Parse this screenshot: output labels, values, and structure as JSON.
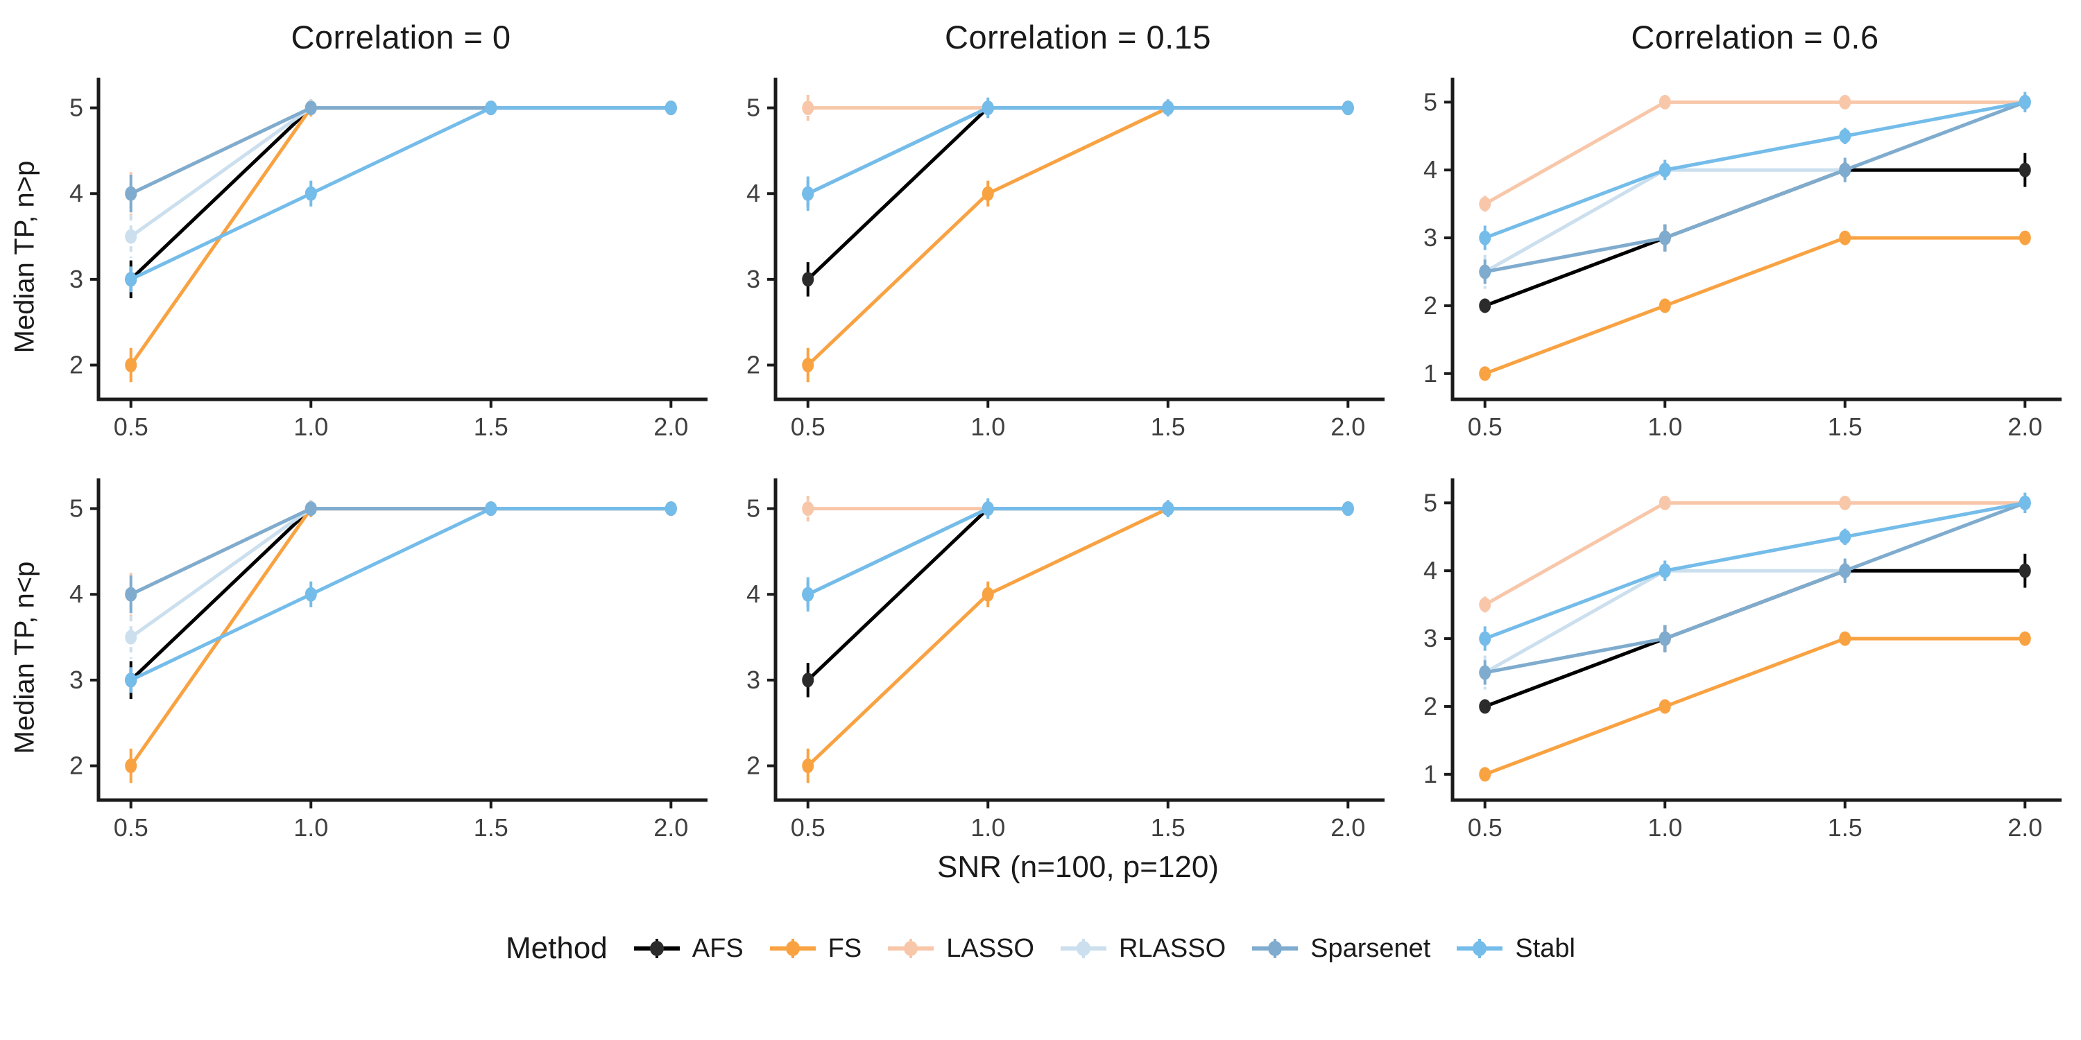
{
  "figure": {
    "col_titles": [
      "Correlation = 0",
      "Correlation = 0.15",
      "Correlation = 0.6"
    ],
    "row_ylabels": [
      "Median TP, n>p",
      "Median TP, n<p"
    ],
    "xlabel": "SNR (n=100, p=120)",
    "legend_title": "Method",
    "background": "#ffffff",
    "axis_color": "#1b1b1b",
    "tick_label_color": "#404040"
  },
  "chart_data": {
    "type": "line",
    "x": [
      0.5,
      1.0,
      1.5,
      2.0
    ],
    "x_tick_labels": [
      "0.5",
      "1.0",
      "1.5",
      "2.0"
    ],
    "xlim": [
      0.41,
      2.09
    ],
    "legend_position": "bottom",
    "grid": "off",
    "methods": [
      {
        "name": "AFS",
        "color": "#000000",
        "point": "#2b2b2b",
        "err_dash": false
      },
      {
        "name": "FS",
        "color": "#F9A242",
        "point": "#F9A242",
        "err_dash": false
      },
      {
        "name": "LASSO",
        "color": "#F8C7A9",
        "point": "#F8C7A9",
        "err_dash": true
      },
      {
        "name": "RLASSO",
        "color": "#CBDFEE",
        "point": "#CBDFEE",
        "err_dash": true
      },
      {
        "name": "Sparsenet",
        "color": "#7FACCE",
        "point": "#7FACCE",
        "err_dash": false
      },
      {
        "name": "Stabl",
        "color": "#74BCE9",
        "point": "#74BCE9",
        "err_dash": false
      }
    ],
    "panels": [
      {
        "facet_col": "Correlation = 0",
        "facet_row": "Median TP, n>p",
        "yticks": [
          2,
          3,
          4,
          5
        ],
        "ylim": [
          1.6,
          5.32
        ],
        "series": {
          "AFS": {
            "y": [
              3,
              5,
              5,
              5
            ],
            "err": [
              0.22,
              0.08,
              0,
              0
            ]
          },
          "FS": {
            "y": [
              2,
              5,
              5,
              5
            ],
            "err": [
              0.2,
              0.1,
              0,
              0
            ]
          },
          "LASSO": {
            "y": [
              4,
              5,
              5,
              5
            ],
            "err": [
              0.25,
              0.08,
              0,
              0
            ]
          },
          "RLASSO": {
            "y": [
              3.5,
              5,
              5,
              5
            ],
            "err": [
              0.25,
              0.1,
              0,
              0
            ]
          },
          "Sparsenet": {
            "y": [
              4,
              5,
              5,
              5
            ],
            "err": [
              0.22,
              0.08,
              0,
              0
            ]
          },
          "Stabl": {
            "y": [
              3,
              4,
              5,
              5
            ],
            "err": [
              0.15,
              0.15,
              0.05,
              0.05
            ]
          }
        }
      },
      {
        "facet_col": "Correlation = 0.15",
        "facet_row": "Median TP, n>p",
        "yticks": [
          2,
          3,
          4,
          5
        ],
        "ylim": [
          1.6,
          5.32
        ],
        "series": {
          "AFS": {
            "y": [
              3,
              5,
              5,
              5
            ],
            "err": [
              0.2,
              0.05,
              0,
              0
            ]
          },
          "FS": {
            "y": [
              2,
              4,
              5,
              5
            ],
            "err": [
              0.2,
              0.15,
              0.08,
              0.05
            ]
          },
          "LASSO": {
            "y": [
              5,
              5,
              5,
              5
            ],
            "err": [
              0.15,
              0.05,
              0.05,
              0.08
            ]
          },
          "RLASSO": {
            "y": [
              4,
              5,
              5,
              5
            ],
            "err": [
              0.15,
              0.05,
              0,
              0
            ]
          },
          "Sparsenet": {
            "y": [
              4,
              5,
              5,
              5
            ],
            "err": [
              0.15,
              0.05,
              0,
              0
            ]
          },
          "Stabl": {
            "y": [
              4,
              5,
              5,
              5
            ],
            "err": [
              0.2,
              0.12,
              0.1,
              0.05
            ]
          }
        }
      },
      {
        "facet_col": "Correlation = 0.6",
        "facet_row": "Median TP, n>p",
        "yticks": [
          1,
          2,
          3,
          4,
          5
        ],
        "ylim": [
          0.62,
          5.32
        ],
        "series": {
          "AFS": {
            "y": [
              2,
              3,
              4,
              4
            ],
            "err": [
              0.1,
              0.2,
              0.12,
              0.25
            ]
          },
          "FS": {
            "y": [
              1,
              2,
              3,
              3
            ],
            "err": [
              0.08,
              0.1,
              0.1,
              0.1
            ]
          },
          "LASSO": {
            "y": [
              3.5,
              5,
              5,
              5
            ],
            "err": [
              0.12,
              0.08,
              0.08,
              0.08
            ]
          },
          "RLASSO": {
            "y": [
              2.5,
              4,
              4,
              5
            ],
            "err": [
              0.25,
              0.12,
              0.1,
              0.1
            ]
          },
          "Sparsenet": {
            "y": [
              2.5,
              3,
              4,
              5
            ],
            "err": [
              0.18,
              0.2,
              0.18,
              0.1
            ]
          },
          "Stabl": {
            "y": [
              3,
              4,
              4.5,
              5
            ],
            "err": [
              0.18,
              0.15,
              0.12,
              0.15
            ]
          }
        }
      },
      {
        "facet_col": "Correlation = 0",
        "facet_row": "Median TP, n<p",
        "yticks": [
          2,
          3,
          4,
          5
        ],
        "ylim": [
          1.6,
          5.32
        ],
        "series": {
          "AFS": {
            "y": [
              3,
              5,
              5,
              5
            ],
            "err": [
              0.22,
              0.08,
              0,
              0
            ]
          },
          "FS": {
            "y": [
              2,
              5,
              5,
              5
            ],
            "err": [
              0.2,
              0.1,
              0,
              0
            ]
          },
          "LASSO": {
            "y": [
              4,
              5,
              5,
              5
            ],
            "err": [
              0.25,
              0.08,
              0,
              0
            ]
          },
          "RLASSO": {
            "y": [
              3.5,
              5,
              5,
              5
            ],
            "err": [
              0.25,
              0.1,
              0,
              0
            ]
          },
          "Sparsenet": {
            "y": [
              4,
              5,
              5,
              5
            ],
            "err": [
              0.22,
              0.08,
              0,
              0
            ]
          },
          "Stabl": {
            "y": [
              3,
              4,
              5,
              5
            ],
            "err": [
              0.15,
              0.15,
              0.05,
              0.05
            ]
          }
        }
      },
      {
        "facet_col": "Correlation = 0.15",
        "facet_row": "Median TP, n<p",
        "yticks": [
          2,
          3,
          4,
          5
        ],
        "ylim": [
          1.6,
          5.32
        ],
        "series": {
          "AFS": {
            "y": [
              3,
              5,
              5,
              5
            ],
            "err": [
              0.2,
              0.05,
              0,
              0
            ]
          },
          "FS": {
            "y": [
              2,
              4,
              5,
              5
            ],
            "err": [
              0.2,
              0.15,
              0.08,
              0.05
            ]
          },
          "LASSO": {
            "y": [
              5,
              5,
              5,
              5
            ],
            "err": [
              0.15,
              0.05,
              0.05,
              0.08
            ]
          },
          "RLASSO": {
            "y": [
              4,
              5,
              5,
              5
            ],
            "err": [
              0.15,
              0.05,
              0,
              0
            ]
          },
          "Sparsenet": {
            "y": [
              4,
              5,
              5,
              5
            ],
            "err": [
              0.15,
              0.05,
              0,
              0
            ]
          },
          "Stabl": {
            "y": [
              4,
              5,
              5,
              5
            ],
            "err": [
              0.2,
              0.12,
              0.1,
              0.05
            ]
          }
        }
      },
      {
        "facet_col": "Correlation = 0.6",
        "facet_row": "Median TP, n<p",
        "yticks": [
          1,
          2,
          3,
          4,
          5
        ],
        "ylim": [
          0.62,
          5.32
        ],
        "series": {
          "AFS": {
            "y": [
              2,
              3,
              4,
              4
            ],
            "err": [
              0.1,
              0.2,
              0.12,
              0.25
            ]
          },
          "FS": {
            "y": [
              1,
              2,
              3,
              3
            ],
            "err": [
              0.08,
              0.1,
              0.1,
              0.1
            ]
          },
          "LASSO": {
            "y": [
              3.5,
              5,
              5,
              5
            ],
            "err": [
              0.12,
              0.08,
              0.08,
              0.08
            ]
          },
          "RLASSO": {
            "y": [
              2.5,
              4,
              4,
              5
            ],
            "err": [
              0.25,
              0.12,
              0.1,
              0.1
            ]
          },
          "Sparsenet": {
            "y": [
              2.5,
              3,
              4,
              5
            ],
            "err": [
              0.18,
              0.2,
              0.18,
              0.1
            ]
          },
          "Stabl": {
            "y": [
              3,
              4,
              4.5,
              5
            ],
            "err": [
              0.18,
              0.15,
              0.12,
              0.15
            ]
          }
        }
      }
    ]
  }
}
